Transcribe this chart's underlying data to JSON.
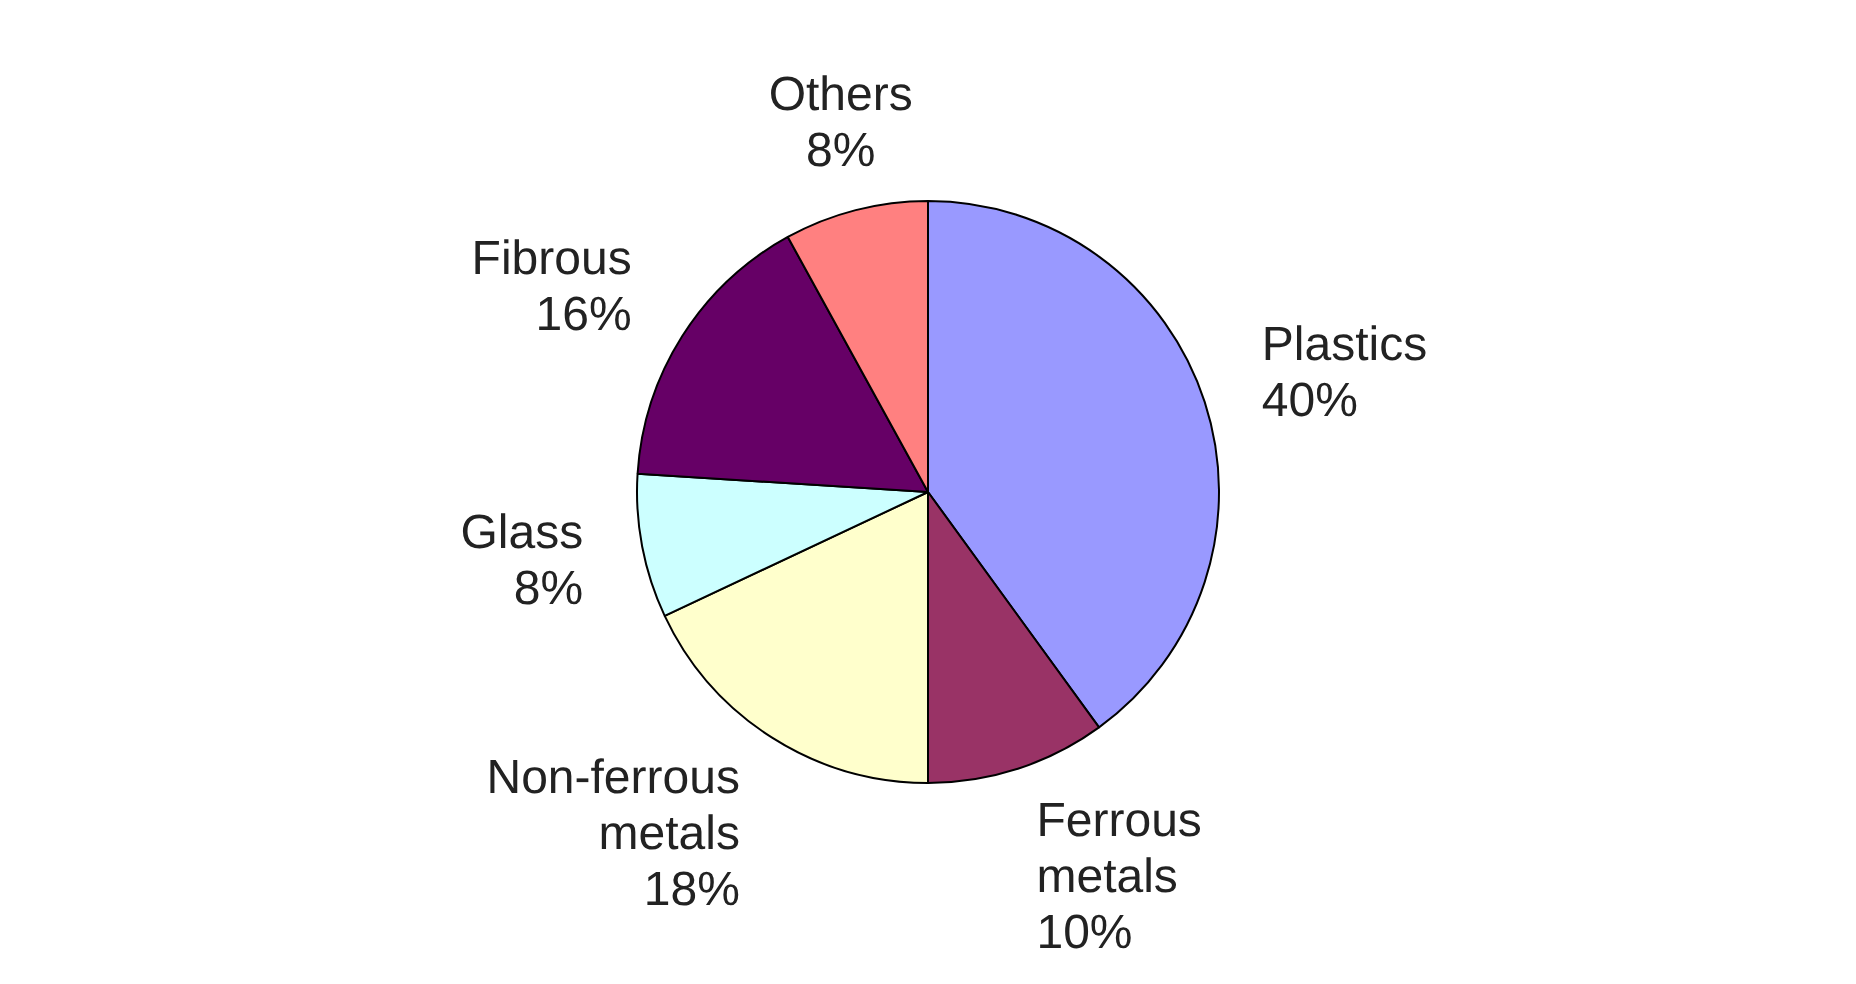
{
  "chart_data": {
    "type": "pie",
    "categories": [
      "Plastics",
      "Ferrous metals",
      "Non-ferrous metals",
      "Glass",
      "Fibrous",
      "Others"
    ],
    "values": [
      40,
      10,
      18,
      8,
      16,
      8
    ],
    "colors": [
      "#9999ff",
      "#993366",
      "#ffffcc",
      "#ccffff",
      "#660066",
      "#ff8080"
    ],
    "value_labels": [
      "40%",
      "10%",
      "18%",
      "8%",
      "16%",
      "8%"
    ],
    "legend": false
  }
}
